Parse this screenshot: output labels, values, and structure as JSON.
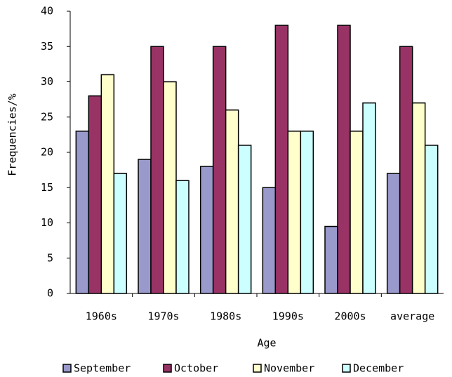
{
  "chart_data": {
    "type": "bar",
    "x_label": "Age",
    "y_label": "Frequencies/%",
    "categories": [
      "1960s",
      "1970s",
      "1980s",
      "1990s",
      "2000s",
      "average"
    ],
    "series": [
      {
        "name": "September",
        "color": "#9999cc",
        "values": [
          23,
          19,
          18,
          15,
          9.5,
          17
        ]
      },
      {
        "name": "October",
        "color": "#993366",
        "values": [
          28,
          35,
          35,
          38,
          38,
          35
        ]
      },
      {
        "name": "November",
        "color": "#ffffcc",
        "values": [
          31,
          30,
          26,
          23,
          23,
          27
        ]
      },
      {
        "name": "December",
        "color": "#ccffff",
        "values": [
          17,
          16,
          21,
          23,
          27,
          21
        ]
      }
    ],
    "ylim": [
      0,
      40
    ],
    "yticks": [
      0,
      5,
      10,
      15,
      20,
      25,
      30,
      35,
      40
    ],
    "grid": false,
    "legend": "bottom"
  }
}
